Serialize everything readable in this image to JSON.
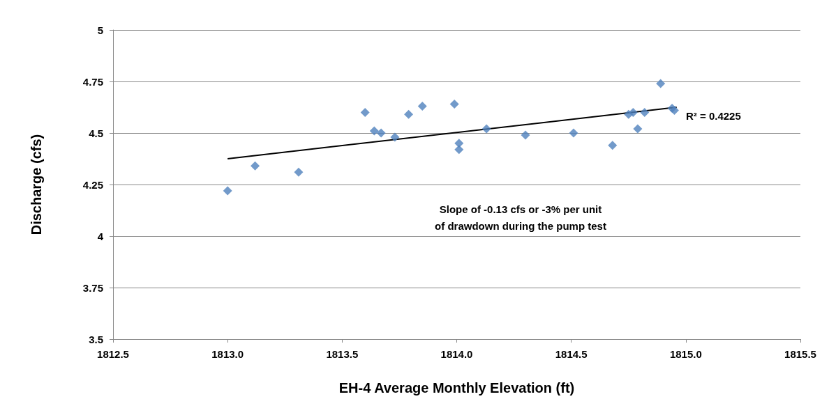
{
  "chart_data": {
    "type": "scatter",
    "xlabel": "EH-4 Average Monthly Elevation (ft)",
    "ylabel": "Discharge (cfs)",
    "series": [
      {
        "color": "#4f81bd",
        "marker": "diamond",
        "x": [
          1813.0,
          1813.12,
          1813.31,
          1813.6,
          1813.64,
          1813.67,
          1813.73,
          1813.79,
          1813.85,
          1813.99,
          1814.01,
          1814.01,
          1814.13,
          1814.3,
          1814.51,
          1814.68,
          1814.75,
          1814.77,
          1814.79,
          1814.82,
          1814.89,
          1814.94,
          1814.95
        ],
        "values": [
          4.22,
          4.34,
          4.31,
          4.6,
          4.51,
          4.5,
          4.48,
          4.59,
          4.63,
          4.64,
          4.45,
          4.42,
          4.52,
          4.49,
          4.5,
          4.44,
          4.59,
          4.6,
          4.52,
          4.6,
          4.74,
          4.62,
          4.61
        ]
      },
      {
        "type": "line",
        "color": "#000000",
        "marker": "none",
        "x": [
          1813.0,
          1814.96
        ],
        "values": [
          4.375,
          4.625
        ]
      }
    ],
    "xlim": [
      1812.5,
      1815.5
    ],
    "xticks": [
      {
        "value": 1812.5,
        "label": "1812.5"
      },
      {
        "value": 1813,
        "label": "1813.0"
      },
      {
        "value": 1813.5,
        "label": "1813.5"
      },
      {
        "value": 1814,
        "label": "1814.0"
      },
      {
        "value": 1814.5,
        "label": "1814.5"
      },
      {
        "value": 1815,
        "label": "1815.0"
      },
      {
        "value": 1815.5,
        "label": "1815.5"
      }
    ],
    "ylim": [
      3.5,
      5
    ],
    "yticks": [
      3.5,
      3.75,
      4,
      4.25,
      4.5,
      4.75,
      5
    ],
    "grid": "y",
    "annotations": [
      "R² = 0.4225",
      "Slope of -0.13 cfs or -3% per unit\nof drawdown during the pump test"
    ]
  }
}
